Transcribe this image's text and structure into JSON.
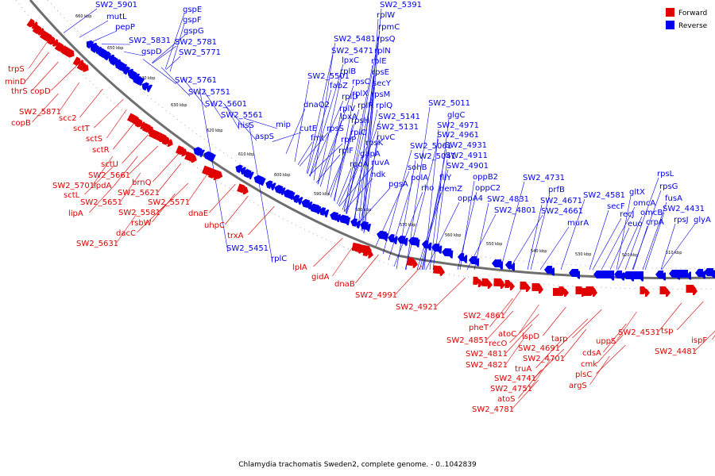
{
  "caption": "Chlamydia trachomatis Sweden2, complete genome. - 0..1042839",
  "legend": {
    "forward_label": "Forward",
    "reverse_label": "Reverse",
    "forward_color": "#e00000",
    "reverse_color": "#0000ee"
  },
  "colors": {
    "backbone": "#888888",
    "dark_tick": "#000000",
    "light_tick": "#999999"
  },
  "kbp_ticks": [
    "660 kbp",
    "650 kbp",
    "640 kbp",
    "630 kbp",
    "620 kbp",
    "610 kbp",
    "600 kbp",
    "590 kbp",
    "580 kbp",
    "570 kbp",
    "560 kbp",
    "550 kbp",
    "540 kbp",
    "530 kbp",
    "520 kbp",
    "510 kbp"
  ],
  "reverse_labels": [
    "SW2_5901",
    "mutL",
    "pepP",
    "gspE",
    "gspF",
    "gspG",
    "SW2_5831",
    "SW2_5781",
    "gspD",
    "SW2_5771",
    "SW2_5761",
    "SW2_5751",
    "SW2_5601",
    "SW2_5561",
    "hisS",
    "aspS",
    "SW2_5451",
    "rplC",
    "SW2_5391",
    "rplW",
    "rpmC",
    "SW2_5481",
    "rpsQ",
    "SW2_5471",
    "rplN",
    "lpxC",
    "rplE",
    "rplB",
    "rpsE",
    "SW2_5501",
    "rpsC",
    "secY",
    "fabZ",
    "rplX",
    "rpsM",
    "rplD",
    "rplR",
    "rplQ",
    "dnaQ2",
    "rplV",
    "SW2_5141",
    "cutE",
    "lpxA",
    "rpsH",
    "SW2_5131",
    "mip",
    "rpsS",
    "rplO",
    "ruvC",
    "fmt",
    "rplP",
    "rpsK",
    "rplF",
    "gapA",
    "rpoA",
    "ruvA",
    "ndk",
    "SW2_5011",
    "glgC",
    "SW2_4971",
    "SW2_4961",
    "SW2_5061",
    "SW2_4931",
    "SW2_5041",
    "SW2_4911",
    "sohB",
    "SW2_4901",
    "polA",
    "fliY",
    "oppB2",
    "pgsA",
    "rho",
    "hemZ",
    "oppC2",
    "SW2_4831",
    "oppA4",
    "SW2_4801",
    "SW2_4731",
    "prfB",
    "SW2_4671",
    "SW2_4661",
    "murA",
    "SW2_4581",
    "secF",
    "gltX",
    "omcA",
    "recJ",
    "omcB",
    "euo",
    "crpA",
    "rpsL",
    "rpsG",
    "fusA",
    "SW2_4431",
    "rpsJ",
    "glyA"
  ],
  "forward_labels": [
    "trpS",
    "minD",
    "thrS",
    "copD",
    "SW2_5871",
    "scc2",
    "copB",
    "sctT",
    "sctS",
    "sctR",
    "sctU",
    "SW2_5661",
    "SW2_5701",
    "lpdA",
    "brnQ",
    "sctL",
    "SW2_5651",
    "SW2_5621",
    "lipA",
    "SW2_5581",
    "SW2_5571",
    "rsbW",
    "dnaE",
    "dacC",
    "SW2_5631",
    "uhpC",
    "trxA",
    "lplA",
    "gidA",
    "dnaB",
    "SW2_4991",
    "SW2_4921",
    "SW2_4861",
    "pheT",
    "SW2_4851",
    "recO",
    "atoC",
    "ispD",
    "SW2_4811",
    "SW2_4691",
    "SW2_4821",
    "SW2_4701",
    "truA",
    "SW2_4741",
    "SW2_4751",
    "atoS",
    "SW2_4781",
    "tarp",
    "uppS",
    "cdsA",
    "cmk",
    "plsC",
    "argS",
    "SW2_4531",
    "tsp",
    "SW2_4481",
    "ispF"
  ]
}
